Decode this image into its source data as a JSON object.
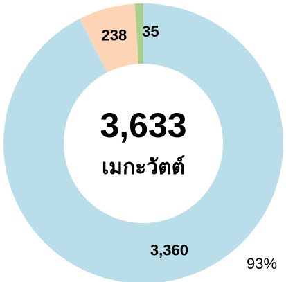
{
  "chart_data": {
    "type": "donut",
    "categories": [
      null,
      null,
      null
    ],
    "values": [
      3360,
      238,
      35
    ],
    "value_labels": [
      "3,360",
      "238",
      "35"
    ],
    "colors": [
      "#b9deea",
      "#fbd5b6",
      "#a9d18e"
    ],
    "center_value": "3,633",
    "center_unit": "เมกะวัตต์",
    "annotation": "93%"
  }
}
